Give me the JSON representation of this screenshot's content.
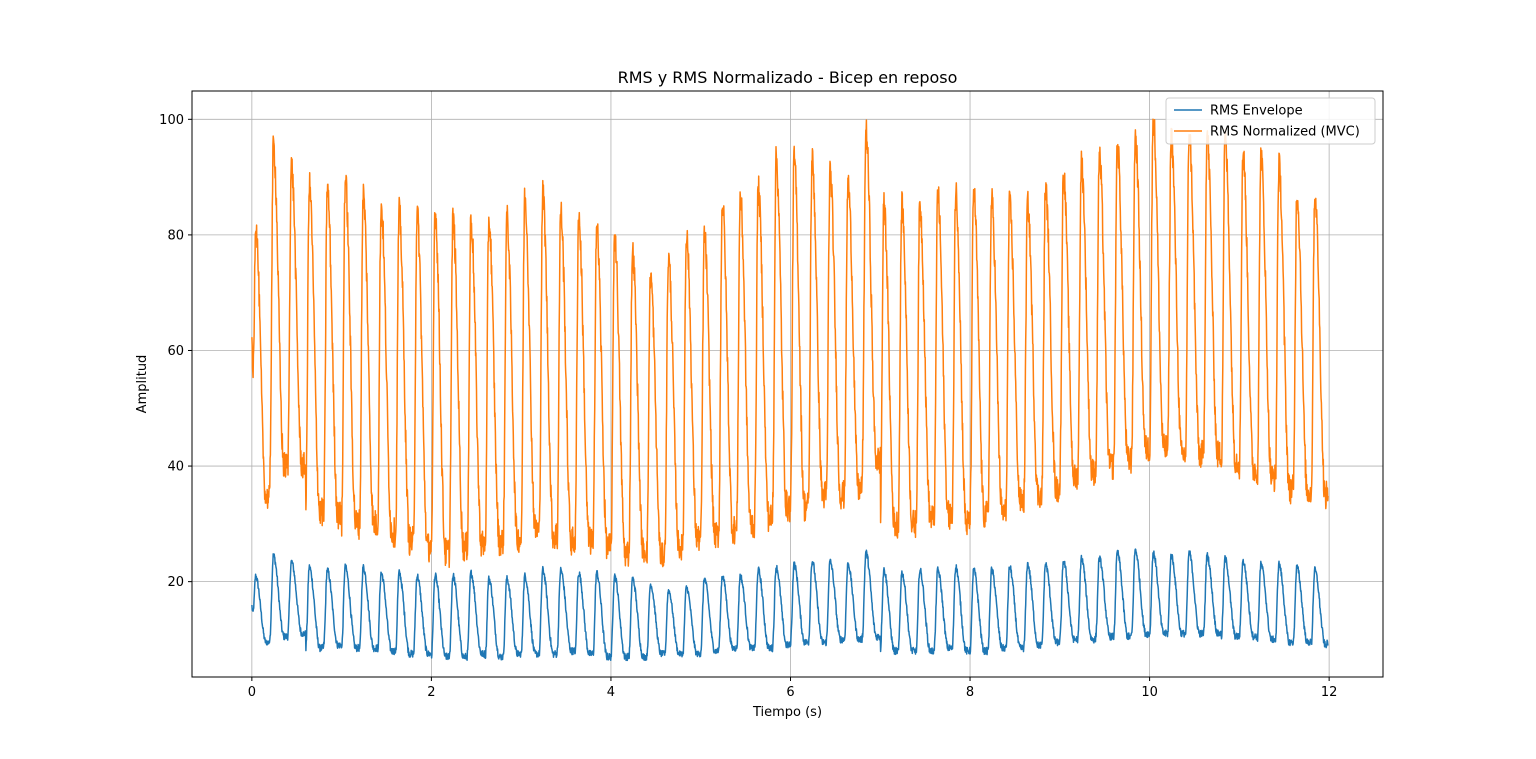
{
  "chart_data": {
    "type": "line",
    "title": "RMS y RMS Normalizado - Bicep en reposo",
    "xlabel": "Tiempo (s)",
    "ylabel": "Amplitud",
    "xlim": [
      -0.6667,
      12.6
    ],
    "ylim": [
      3.5,
      104.9
    ],
    "xticks": [
      0,
      2,
      4,
      6,
      8,
      10,
      12
    ],
    "yticks": [
      20,
      40,
      60,
      80,
      100
    ],
    "grid": true,
    "legend_position": "top-right",
    "cycle_period_s": 0.2,
    "series": [
      {
        "name": "RMS Envelope",
        "color": "#1f77b4",
        "start_value": 15.8,
        "end_value": 9.5,
        "cycle_peaks": [
          21.0,
          24.5,
          23.5,
          22.5,
          22.0,
          22.5,
          22.5,
          21.5,
          21.5,
          21.0,
          21.0,
          21.0,
          21.5,
          20.5,
          20.5,
          21.0,
          22.0,
          22.0,
          21.5,
          21.5,
          21.0,
          20.5,
          19.5,
          18.5,
          19.0,
          20.5,
          21.0,
          21.0,
          22.0,
          22.5,
          23.0,
          23.5,
          23.5,
          23.0,
          25.0,
          22.0,
          21.5,
          22.0,
          22.0,
          22.5,
          22.0,
          22.0,
          22.5,
          23.0,
          23.0,
          23.5,
          24.0,
          24.0,
          25.0,
          25.5,
          25.0,
          24.5,
          25.0,
          24.5,
          24.0,
          23.5,
          23.0,
          23.0,
          22.5,
          22.0,
          22.0,
          21.5,
          21.5,
          21.0,
          21.0
        ],
        "cycle_troughs": [
          9.5,
          10.5,
          11.0,
          8.5,
          9.0,
          8.5,
          8.5,
          8.0,
          7.5,
          7.5,
          7.0,
          7.0,
          7.5,
          7.0,
          7.5,
          7.5,
          7.5,
          8.0,
          7.5,
          7.0,
          7.0,
          7.0,
          7.5,
          7.5,
          7.5,
          8.0,
          8.5,
          8.5,
          8.5,
          9.0,
          9.5,
          9.5,
          10.0,
          10.0,
          10.5,
          8.0,
          8.0,
          8.0,
          8.5,
          8.0,
          8.0,
          8.5,
          8.5,
          9.0,
          9.5,
          10.0,
          10.0,
          10.5,
          10.5,
          11.0,
          11.0,
          11.0,
          11.0,
          11.0,
          10.5,
          10.5,
          10.0,
          9.5,
          9.5,
          9.0,
          8.5,
          8.0,
          8.5,
          9.0,
          9.0
        ]
      },
      {
        "name": "RMS Normalized (MVC)",
        "color": "#ff7f0e",
        "start_value": 61.0,
        "end_value": 36.0,
        "cycle_peaks": [
          82.0,
          95.5,
          92.0,
          88.5,
          88.0,
          89.5,
          87.0,
          85.0,
          84.0,
          83.5,
          84.0,
          82.5,
          82.5,
          82.5,
          83.0,
          86.5,
          87.0,
          84.0,
          83.0,
          81.5,
          80.0,
          77.0,
          73.0,
          76.0,
          80.0,
          80.0,
          85.5,
          86.5,
          88.0,
          93.0,
          93.0,
          93.0,
          91.0,
          89.0,
          98.0,
          85.0,
          85.0,
          85.0,
          87.0,
          87.5,
          87.5,
          86.0,
          85.5,
          85.5,
          88.0,
          90.5,
          92.5,
          93.5,
          95.5,
          97.0,
          100.0,
          97.0,
          97.5,
          97.0,
          96.5,
          94.0,
          93.5,
          92.0,
          87.0,
          87.0,
          86.0,
          85.0,
          84.5,
          82.0,
          81.5
        ],
        "cycle_troughs": [
          34.5,
          40.0,
          40.0,
          32.0,
          31.5,
          30.0,
          30.0,
          28.5,
          27.0,
          26.0,
          25.0,
          26.0,
          26.5,
          27.0,
          27.5,
          29.0,
          28.0,
          27.0,
          27.0,
          26.0,
          25.0,
          25.5,
          24.5,
          26.0,
          27.5,
          28.0,
          29.0,
          30.0,
          31.0,
          33.0,
          33.0,
          35.0,
          35.0,
          36.0,
          41.0,
          30.0,
          30.0,
          31.0,
          31.5,
          30.0,
          31.5,
          32.0,
          34.0,
          35.0,
          36.0,
          38.0,
          39.0,
          40.0,
          41.0,
          43.0,
          43.0,
          42.0,
          42.0,
          42.0,
          41.0,
          39.5,
          38.0,
          36.0,
          35.5,
          34.5,
          33.0,
          29.0,
          31.0,
          32.0,
          32.0
        ]
      }
    ]
  }
}
